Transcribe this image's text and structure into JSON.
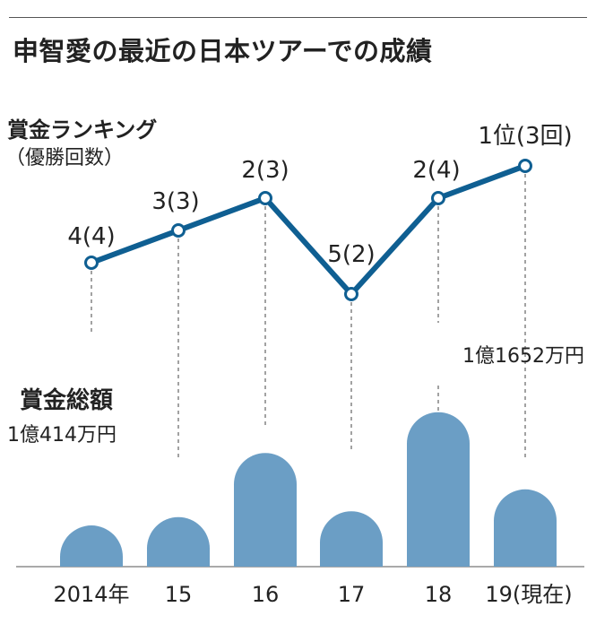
{
  "title": "申智愛の最近の日本ツアーでの成績",
  "chart_data": {
    "type": "line+bar",
    "categories": [
      "2014年",
      "15",
      "16",
      "17",
      "18",
      "19(現在)"
    ],
    "ranking": {
      "label": "賞金ランキング",
      "sublabel": "（優勝回数）",
      "ranks": [
        4,
        3,
        2,
        5,
        2,
        1
      ],
      "wins": [
        4,
        3,
        3,
        2,
        4,
        3
      ],
      "point_labels": [
        "4(4)",
        "3(3)",
        "2(3)",
        "5(2)",
        "2(4)",
        "1位(3回)"
      ],
      "color": "#0f5f92"
    },
    "earnings": {
      "label": "賞金総額",
      "values_man_yen": [
        10414,
        10700,
        12900,
        10900,
        14300,
        11652
      ],
      "annotations": [
        "1億414万円",
        "",
        "",
        "",
        "",
        "1億1652万円"
      ],
      "color": "#6b9ec5"
    }
  }
}
